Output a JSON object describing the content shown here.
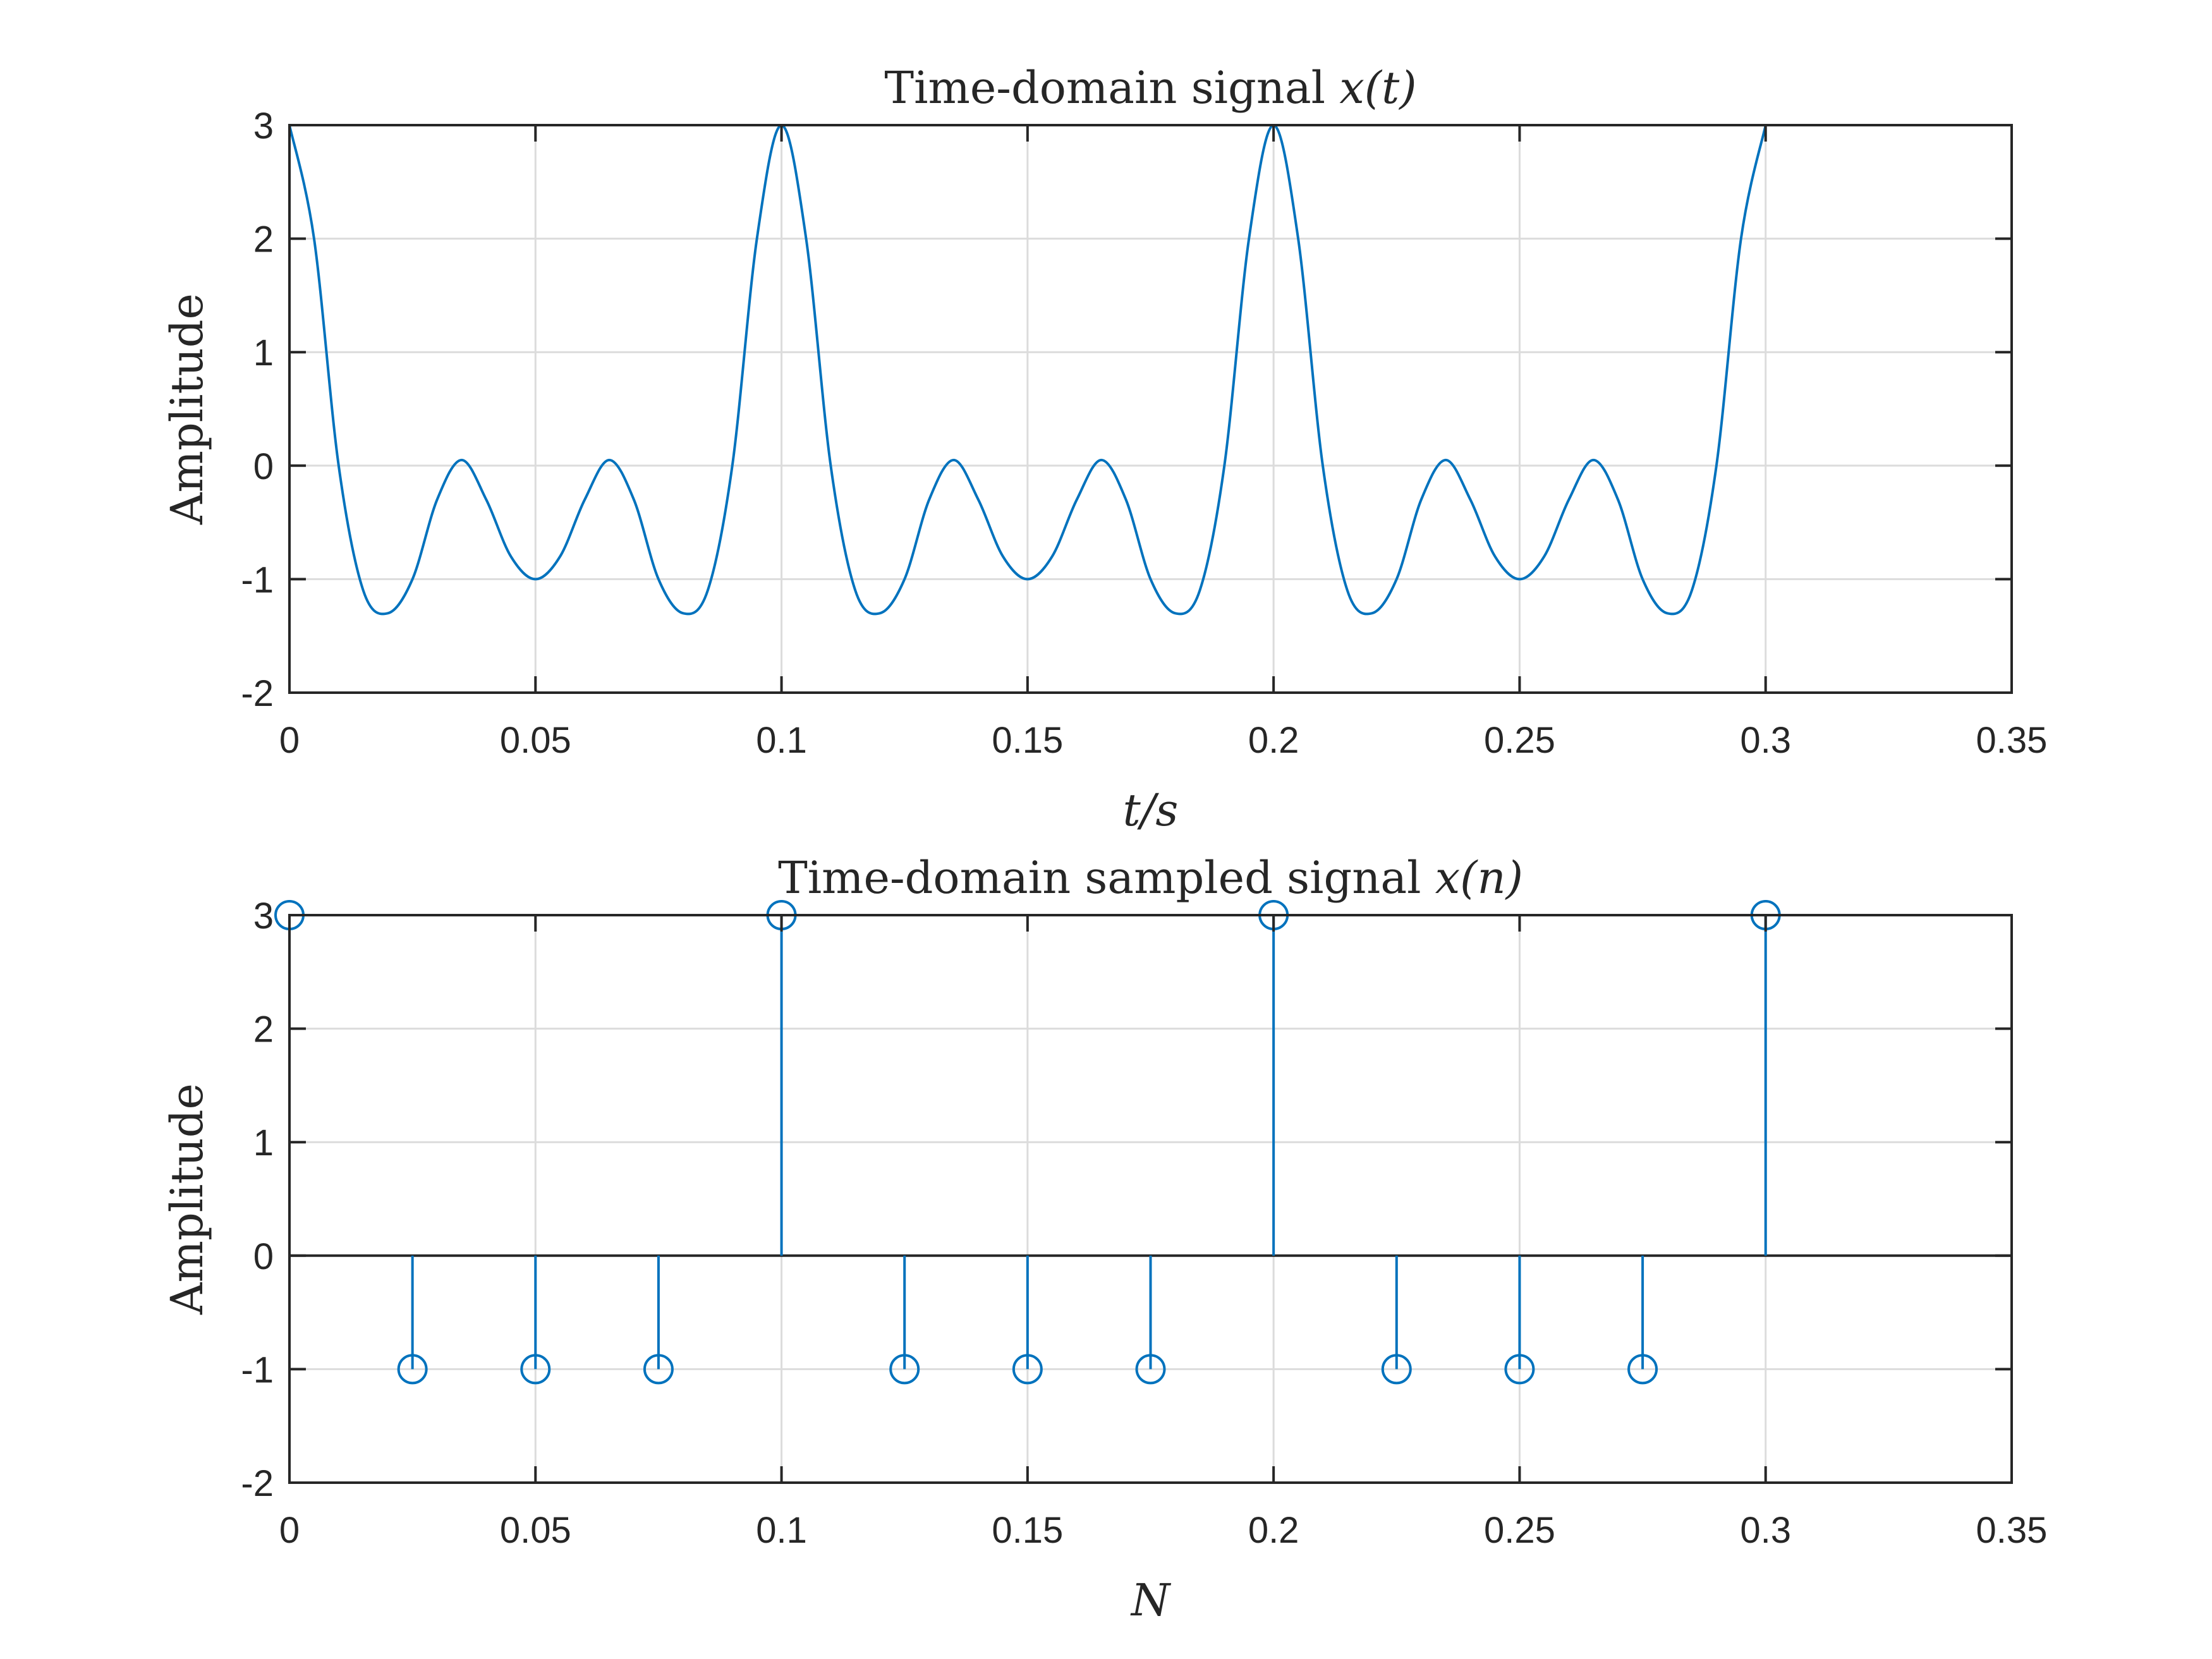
{
  "chart_data": [
    {
      "type": "line",
      "title": "Time-domain signal ",
      "title_math": "x(t)",
      "xlabel": "t/s",
      "ylabel": "Amplitude",
      "xlim": [
        0,
        0.35
      ],
      "ylim": [
        -2,
        3
      ],
      "xticks": [
        0,
        0.05,
        0.1,
        0.15,
        0.2,
        0.25,
        0.3,
        0.35
      ],
      "xtick_labels": [
        "0",
        "0.05",
        "0.1",
        "0.15",
        "0.2",
        "0.25",
        "0.3",
        "0.35"
      ],
      "yticks": [
        -2,
        -1,
        0,
        1,
        2,
        3
      ],
      "ytick_labels": [
        "-2",
        "-1",
        "0",
        "1",
        "2",
        "3"
      ],
      "grid": true,
      "color": "#0072BD",
      "series": [
        {
          "x": [
            0,
            0.005,
            0.01,
            0.015,
            0.02,
            0.025,
            0.03,
            0.035,
            0.04,
            0.045,
            0.05,
            0.055,
            0.06,
            0.065,
            0.07,
            0.075,
            0.08,
            0.085,
            0.09,
            0.095,
            0.1,
            0.105,
            0.11,
            0.115,
            0.12,
            0.125,
            0.13,
            0.135,
            0.14,
            0.145,
            0.15,
            0.155,
            0.16,
            0.165,
            0.17,
            0.175,
            0.18,
            0.185,
            0.19,
            0.195,
            0.2,
            0.205,
            0.21,
            0.215,
            0.22,
            0.225,
            0.23,
            0.235,
            0.24,
            0.245,
            0.25,
            0.255,
            0.26,
            0.265,
            0.27,
            0.275,
            0.28,
            0.285,
            0.29,
            0.295,
            0.3
          ],
          "y": [
            3.0,
            2.0,
            0.0,
            -1.1,
            -1.3,
            -1.0,
            -0.3,
            0.05,
            -0.3,
            -0.8,
            -1.0,
            -0.8,
            -0.3,
            0.05,
            -0.3,
            -1.0,
            -1.3,
            -1.1,
            0.0,
            2.0,
            3.0,
            2.0,
            0.0,
            -1.1,
            -1.3,
            -1.0,
            -0.3,
            0.05,
            -0.3,
            -0.8,
            -1.0,
            -0.8,
            -0.3,
            0.05,
            -0.3,
            -1.0,
            -1.3,
            -1.1,
            0.0,
            2.0,
            3.0,
            2.0,
            0.0,
            -1.1,
            -1.3,
            -1.0,
            -0.3,
            0.05,
            -0.3,
            -0.8,
            -1.0,
            -0.8,
            -0.3,
            0.05,
            -0.3,
            -1.0,
            -1.3,
            -1.1,
            0.0,
            2.0,
            3.0
          ]
        }
      ]
    },
    {
      "type": "stem",
      "title": "Time-domain sampled signal ",
      "title_math": "x(n)",
      "xlabel": "N",
      "ylabel": "Amplitude",
      "xlim": [
        0,
        0.35
      ],
      "ylim": [
        -2,
        3
      ],
      "xticks": [
        0,
        0.05,
        0.1,
        0.15,
        0.2,
        0.25,
        0.3,
        0.35
      ],
      "xtick_labels": [
        "0",
        "0.05",
        "0.1",
        "0.15",
        "0.2",
        "0.25",
        "0.3",
        "0.35"
      ],
      "yticks": [
        -2,
        -1,
        0,
        1,
        2,
        3
      ],
      "ytick_labels": [
        "-2",
        "-1",
        "0",
        "1",
        "2",
        "3"
      ],
      "grid": true,
      "color": "#0072BD",
      "series": [
        {
          "x": [
            0,
            0.025,
            0.05,
            0.075,
            0.1,
            0.125,
            0.15,
            0.175,
            0.2,
            0.225,
            0.25,
            0.275,
            0.3
          ],
          "y": [
            3,
            -1,
            -1,
            -1,
            3,
            -1,
            -1,
            -1,
            3,
            -1,
            -1,
            -1,
            3
          ]
        }
      ]
    }
  ]
}
